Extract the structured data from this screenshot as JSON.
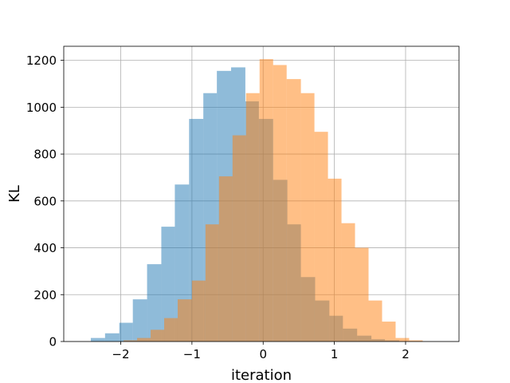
{
  "chart_data": {
    "type": "histogram",
    "title": "",
    "xlabel": "iteration",
    "ylabel": "KL",
    "xlim": [
      -2.8,
      2.75
    ],
    "ylim": [
      0,
      1260
    ],
    "xticks": [
      -2,
      -1,
      0,
      1,
      2
    ],
    "xtick_labels": [
      "−2",
      "−1",
      "0",
      "1",
      "2"
    ],
    "yticks": [
      0,
      200,
      400,
      600,
      800,
      1000,
      1200
    ],
    "ytick_labels": [
      "0",
      "200",
      "400",
      "600",
      "800",
      "1000",
      "1200"
    ],
    "grid": true,
    "series": [
      {
        "color": "#1f77b4",
        "opacity": 0.5,
        "bin_edges": [
          -2.42,
          -2.22,
          -2.02,
          -1.83,
          -1.63,
          -1.43,
          -1.24,
          -1.04,
          -0.84,
          -0.65,
          -0.45,
          -0.25,
          -0.06,
          0.14,
          0.34,
          0.53,
          0.73,
          0.93,
          1.12,
          1.32,
          1.52,
          1.71,
          1.91
        ],
        "counts": [
          15,
          35,
          80,
          180,
          330,
          490,
          670,
          950,
          1060,
          1155,
          1170,
          1025,
          950,
          690,
          500,
          275,
          175,
          110,
          55,
          25,
          10,
          5
        ]
      },
      {
        "color": "#ff7f0e",
        "opacity": 0.5,
        "bin_edges": [
          -1.96,
          -1.77,
          -1.58,
          -1.39,
          -1.2,
          -1.0,
          -0.81,
          -0.62,
          -0.43,
          -0.24,
          -0.05,
          0.14,
          0.33,
          0.53,
          0.72,
          0.91,
          1.1,
          1.29,
          1.48,
          1.67,
          1.86,
          2.05,
          2.24
        ],
        "counts": [
          5,
          15,
          50,
          100,
          180,
          260,
          500,
          705,
          880,
          1060,
          1205,
          1180,
          1120,
          1060,
          895,
          695,
          505,
          400,
          175,
          85,
          15,
          5
        ]
      }
    ]
  }
}
